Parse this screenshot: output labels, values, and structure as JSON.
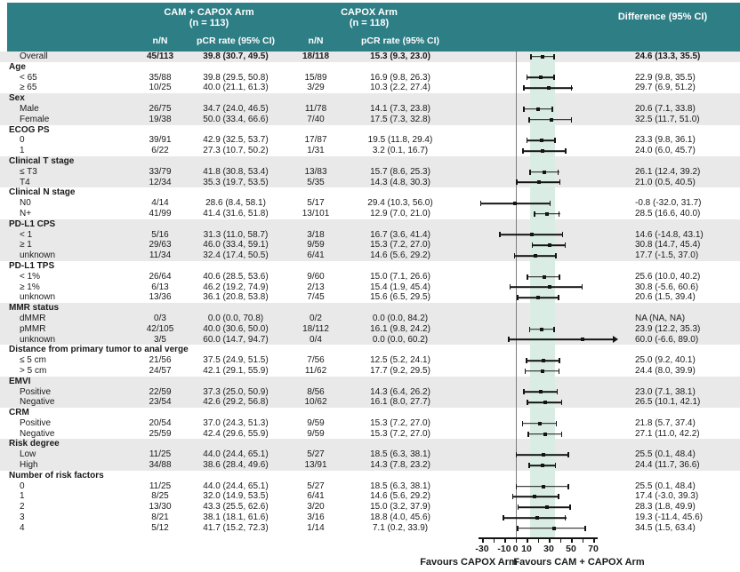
{
  "colors": {
    "header_bg": "#2E7E86",
    "stripe": "#E9E9E9",
    "band": "#DAEDE5",
    "marker": "#141414",
    "ref_line": "#7D7D7D"
  },
  "header": {
    "arm1_name": "CAM + CAPOX Arm",
    "arm1_n": "(n = 113)",
    "arm2_name": "CAPOX Arm",
    "arm2_n": "(n = 118)",
    "col_nN_1": "n/N",
    "col_rate_1": "pCR rate (95% CI)",
    "col_nN_2": "n/N",
    "col_rate_2": "pCR rate (95% CI)",
    "col_diff": "Difference (95% CI)"
  },
  "chart_data": {
    "type": "scatter",
    "subtype": "forest-plot",
    "xlim": [
      -30,
      70
    ],
    "ref_line": 0,
    "shaded_band": [
      13.3,
      35.5
    ],
    "ticks": [
      -30,
      -20,
      -10,
      0,
      10,
      20,
      30,
      40,
      50,
      60,
      70
    ],
    "tick_labels": [
      -30,
      -10,
      0,
      10,
      30,
      50,
      70
    ],
    "favours_left": "Favours CAPOX Arm",
    "favours_right": "Favours CAM + CAPOX Arm",
    "rows": [
      {
        "k": "overall",
        "label": "Overall",
        "n1": "45/113",
        "r1": "39.8 (30.7, 49.5)",
        "n2": "18/118",
        "r2": "15.3 (9.3, 23.0)",
        "d": "24.6 (13.3, 35.5)",
        "est": 24.6,
        "lo": 13.3,
        "hi": 35.5,
        "shade": true
      },
      {
        "k": "group",
        "label": "Age",
        "shade": false
      },
      {
        "k": "item",
        "label": "< 65",
        "n1": "35/88",
        "r1": "39.8 (29.5, 50.8)",
        "n2": "15/89",
        "r2": "16.9 (9.8, 26.3)",
        "d": "22.9 (9.8, 35.5)",
        "est": 22.9,
        "lo": 9.8,
        "hi": 35.5,
        "shade": false
      },
      {
        "k": "item",
        "label": "≥ 65",
        "n1": "10/25",
        "r1": "40.0 (21.1, 61.3)",
        "n2": "3/29",
        "r2": "10.3 (2.2, 27.4)",
        "d": "29.7 (6.9, 51.2)",
        "est": 29.7,
        "lo": 6.9,
        "hi": 51.2,
        "shade": false
      },
      {
        "k": "group",
        "label": "Sex",
        "shade": true
      },
      {
        "k": "item",
        "label": "Male",
        "n1": "26/75",
        "r1": "34.7 (24.0, 46.5)",
        "n2": "11/78",
        "r2": "14.1 (7.3, 23.8)",
        "d": "20.6 (7.1, 33.8)",
        "est": 20.6,
        "lo": 7.1,
        "hi": 33.8,
        "shade": true
      },
      {
        "k": "item",
        "label": "Female",
        "n1": "19/38",
        "r1": "50.0 (33.4, 66.6)",
        "n2": "7/40",
        "r2": "17.5 (7.3, 32.8)",
        "d": "32.5 (11.7, 51.0)",
        "est": 32.5,
        "lo": 11.7,
        "hi": 51.0,
        "shade": true
      },
      {
        "k": "group",
        "label": "ECOG PS",
        "shade": false
      },
      {
        "k": "item",
        "label": "0",
        "n1": "39/91",
        "r1": "42.9 (32.5, 53.7)",
        "n2": "17/87",
        "r2": "19.5 (11.8, 29.4)",
        "d": "23.3 (9.8, 36.1)",
        "est": 23.3,
        "lo": 9.8,
        "hi": 36.1,
        "shade": false
      },
      {
        "k": "item",
        "label": "1",
        "n1": "6/22",
        "r1": "27.3 (10.7, 50.2)",
        "n2": "1/31",
        "r2": "3.2 (0.1, 16.7)",
        "d": "24.0 (6.0, 45.7)",
        "est": 24.0,
        "lo": 6.0,
        "hi": 45.7,
        "shade": false
      },
      {
        "k": "group",
        "label": "Clinical T stage",
        "shade": true
      },
      {
        "k": "item",
        "label": "≤ T3",
        "n1": "33/79",
        "r1": "41.8 (30.8, 53.4)",
        "n2": "13/83",
        "r2": "15.7 (8.6, 25.3)",
        "d": "26.1 (12.4, 39.2)",
        "est": 26.1,
        "lo": 12.4,
        "hi": 39.2,
        "shade": true
      },
      {
        "k": "item",
        "label": "T4",
        "n1": "12/34",
        "r1": "35.3 (19.7, 53.5)",
        "n2": "5/35",
        "r2": "14.3 (4.8, 30.3)",
        "d": "21.0 (0.5, 40.5)",
        "est": 21.0,
        "lo": 0.5,
        "hi": 40.5,
        "shade": true
      },
      {
        "k": "group",
        "label": "Clinical N stage",
        "shade": false
      },
      {
        "k": "item",
        "label": "N0",
        "n1": "4/14",
        "r1": "28.6 (8.4, 58.1)",
        "n2": "5/17",
        "r2": "29.4 (10.3, 56.0)",
        "d": "-0.8 (-32.0, 31.7)",
        "est": -0.8,
        "lo": -32.0,
        "hi": 31.7,
        "shade": false
      },
      {
        "k": "item",
        "label": "N+",
        "n1": "41/99",
        "r1": "41.4 (31.6, 51.8)",
        "n2": "13/101",
        "r2": "12.9 (7.0, 21.0)",
        "d": "28.5 (16.6, 40.0)",
        "est": 28.5,
        "lo": 16.6,
        "hi": 40.0,
        "shade": false
      },
      {
        "k": "group",
        "label": "PD-L1 CPS",
        "shade": true
      },
      {
        "k": "item",
        "label": "< 1",
        "n1": "5/16",
        "r1": "31.3 (11.0, 58.7)",
        "n2": "3/18",
        "r2": "16.7 (3.6, 41.4)",
        "d": "14.6 (-14.8, 43.1)",
        "est": 14.6,
        "lo": -14.8,
        "hi": 43.1,
        "shade": true
      },
      {
        "k": "item",
        "label": "≥ 1",
        "n1": "29/63",
        "r1": "46.0 (33.4, 59.1)",
        "n2": "9/59",
        "r2": "15.3 (7.2, 27.0)",
        "d": "30.8 (14.7, 45.4)",
        "est": 30.8,
        "lo": 14.7,
        "hi": 45.4,
        "shade": true
      },
      {
        "k": "item",
        "label": "unknown",
        "n1": "11/34",
        "r1": "32.4 (17.4, 50.5)",
        "n2": "6/41",
        "r2": "14.6 (5.6, 29.2)",
        "d": "17.7 (-1.5, 37.0)",
        "est": 17.7,
        "lo": -1.5,
        "hi": 37.0,
        "shade": true
      },
      {
        "k": "group",
        "label": "PD-L1 TPS",
        "shade": false
      },
      {
        "k": "item",
        "label": "< 1%",
        "n1": "26/64",
        "r1": "40.6 (28.5, 53.6)",
        "n2": "9/60",
        "r2": "15.0 (7.1, 26.6)",
        "d": "25.6 (10.0, 40.2)",
        "est": 25.6,
        "lo": 10.0,
        "hi": 40.2,
        "shade": false
      },
      {
        "k": "item",
        "label": "≥ 1%",
        "n1": "6/13",
        "r1": "46.2 (19.2, 74.9)",
        "n2": "2/13",
        "r2": "15.4 (1.9, 45.4)",
        "d": "30.8 (-5.6, 60.6)",
        "est": 30.8,
        "lo": -5.6,
        "hi": 60.6,
        "shade": false
      },
      {
        "k": "item",
        "label": "unknown",
        "n1": "13/36",
        "r1": "36.1 (20.8, 53.8)",
        "n2": "7/45",
        "r2": "15.6 (6.5, 29.5)",
        "d": "20.6 (1.5, 39.4)",
        "est": 20.6,
        "lo": 1.5,
        "hi": 39.4,
        "shade": false
      },
      {
        "k": "group",
        "label": "MMR status",
        "shade": true
      },
      {
        "k": "item",
        "label": "dMMR",
        "n1": "0/3",
        "r1": "0.0 (0.0, 70.8)",
        "n2": "0/2",
        "r2": "0.0 (0.0, 84.2)",
        "d": "NA (NA, NA)",
        "est": null,
        "lo": null,
        "hi": null,
        "shade": true
      },
      {
        "k": "item",
        "label": "pMMR",
        "n1": "42/105",
        "r1": "40.0 (30.6, 50.0)",
        "n2": "18/112",
        "r2": "16.1 (9.8, 24.2)",
        "d": "23.9 (12.2, 35.3)",
        "est": 23.9,
        "lo": 12.2,
        "hi": 35.3,
        "shade": true
      },
      {
        "k": "item",
        "label": "unknown",
        "n1": "3/5",
        "r1": "60.0 (14.7, 94.7)",
        "n2": "0/4",
        "r2": "0.0 (0.0, 60.2)",
        "d": "60.0 (-6.6, 89.0)",
        "est": 60.0,
        "lo": -6.6,
        "hi": 89.0,
        "arrow": true,
        "shade": true
      },
      {
        "k": "group",
        "label": "Distance from primary tumor to anal verge",
        "shade": false
      },
      {
        "k": "item",
        "label": "≤ 5 cm",
        "n1": "21/56",
        "r1": "37.5 (24.9, 51.5)",
        "n2": "7/56",
        "r2": "12.5 (5.2, 24.1)",
        "d": "25.0 (9.2, 40.1)",
        "est": 25.0,
        "lo": 9.2,
        "hi": 40.1,
        "shade": false
      },
      {
        "k": "item",
        "label": "> 5 cm",
        "n1": "24/57",
        "r1": "42.1 (29.1, 55.9)",
        "n2": "11/62",
        "r2": "17.7 (9.2, 29.5)",
        "d": "24.4 (8.0, 39.9)",
        "est": 24.4,
        "lo": 8.0,
        "hi": 39.9,
        "shade": false
      },
      {
        "k": "group",
        "label": "EMVI",
        "shade": true
      },
      {
        "k": "item",
        "label": "Positive",
        "n1": "22/59",
        "r1": "37.3 (25.0, 50.9)",
        "n2": "8/56",
        "r2": "14.3 (6.4, 26.2)",
        "d": "23.0 (7.1, 38.1)",
        "est": 23.0,
        "lo": 7.1,
        "hi": 38.1,
        "shade": true
      },
      {
        "k": "item",
        "label": "Negative",
        "n1": "23/54",
        "r1": "42.6 (29.2, 56.8)",
        "n2": "10/62",
        "r2": "16.1 (8.0, 27.7)",
        "d": "26.5 (10.1, 42.1)",
        "est": 26.5,
        "lo": 10.1,
        "hi": 42.1,
        "shade": true
      },
      {
        "k": "group",
        "label": "CRM",
        "shade": false
      },
      {
        "k": "item",
        "label": "Positive",
        "n1": "20/54",
        "r1": "37.0 (24.3, 51.3)",
        "n2": "9/59",
        "r2": "15.3 (7.2, 27.0)",
        "d": "21.8 (5.7, 37.4)",
        "est": 21.8,
        "lo": 5.7,
        "hi": 37.4,
        "shade": false
      },
      {
        "k": "item",
        "label": "Negative",
        "n1": "25/59",
        "r1": "42.4 (29.6, 55.9)",
        "n2": "9/59",
        "r2": "15.3 (7.2, 27.0)",
        "d": "27.1 (11.0, 42.2)",
        "est": 27.1,
        "lo": 11.0,
        "hi": 42.2,
        "shade": false
      },
      {
        "k": "group",
        "label": "Risk degree",
        "shade": true
      },
      {
        "k": "item",
        "label": "Low",
        "n1": "11/25",
        "r1": "44.0 (24.4, 65.1)",
        "n2": "5/27",
        "r2": "18.5 (6.3, 38.1)",
        "d": "25.5 (0.1, 48.4)",
        "est": 25.5,
        "lo": 0.1,
        "hi": 48.4,
        "shade": true
      },
      {
        "k": "item",
        "label": "High",
        "n1": "34/88",
        "r1": "38.6 (28.4, 49.6)",
        "n2": "13/91",
        "r2": "14.3 (7.8, 23.2)",
        "d": "24.4 (11.7, 36.6)",
        "est": 24.4,
        "lo": 11.7,
        "hi": 36.6,
        "shade": true
      },
      {
        "k": "group",
        "label": "Number of risk factors",
        "shade": false
      },
      {
        "k": "item",
        "label": "0",
        "n1": "11/25",
        "r1": "44.0 (24.4, 65.1)",
        "n2": "5/27",
        "r2": "18.5 (6.3, 38.1)",
        "d": "25.5 (0.1, 48.4)",
        "est": 25.5,
        "lo": 0.1,
        "hi": 48.4,
        "shade": false
      },
      {
        "k": "item",
        "label": "1",
        "n1": "8/25",
        "r1": "32.0 (14.9, 53.5)",
        "n2": "6/41",
        "r2": "14.6 (5.6, 29.2)",
        "d": "17.4 (-3.0, 39.3)",
        "est": 17.4,
        "lo": -3.0,
        "hi": 39.3,
        "shade": false
      },
      {
        "k": "item",
        "label": "2",
        "n1": "13/30",
        "r1": "43.3 (25.5, 62.6)",
        "n2": "3/20",
        "r2": "15.0 (3.2, 37.9)",
        "d": "28.3 (1.8, 49.9)",
        "est": 28.3,
        "lo": 1.8,
        "hi": 49.9,
        "shade": false
      },
      {
        "k": "item",
        "label": "3",
        "n1": "8/21",
        "r1": "38.1 (18.1, 61.6)",
        "n2": "3/16",
        "r2": "18.8 (4.0, 45.6)",
        "d": "19.3 (-11.4, 45.6)",
        "est": 19.3,
        "lo": -11.4,
        "hi": 45.6,
        "shade": false
      },
      {
        "k": "item",
        "label": "4",
        "n1": "5/12",
        "r1": "41.7 (15.2, 72.3)",
        "n2": "1/14",
        "r2": "7.1 (0.2, 33.9)",
        "d": "34.5 (1.5, 63.4)",
        "est": 34.5,
        "lo": 1.5,
        "hi": 63.4,
        "shade": false
      }
    ]
  }
}
